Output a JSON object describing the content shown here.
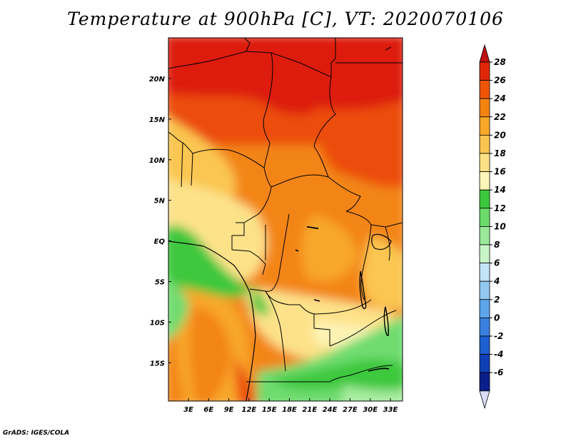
{
  "title": "Temperature at 900hPa [C], VT: 2020070106",
  "credit": "GrADS: IGES/COLA",
  "map": {
    "lat_labels": [
      "20N",
      "15N",
      "10N",
      "5N",
      "EQ",
      "5S",
      "10S",
      "15S"
    ],
    "lon_labels": [
      "3E",
      "6E",
      "9E",
      "12E",
      "15E",
      "18E",
      "21E",
      "24E",
      "27E",
      "30E",
      "33E"
    ]
  },
  "colorbar": {
    "labels": [
      "28",
      "26",
      "24",
      "22",
      "20",
      "18",
      "16",
      "14",
      "12",
      "10",
      "8",
      "6",
      "4",
      "2",
      "0",
      "-2",
      "-4",
      "-6"
    ],
    "top_color": "#c01010",
    "colors": [
      "#e02808",
      "#ee5505",
      "#f48410",
      "#f8a728",
      "#fbc450",
      "#fde285",
      "#fdf6b8",
      "#3cc83c",
      "#6bdc6b",
      "#9ae89a",
      "#c8f5c8",
      "#c3e3f7",
      "#93c8f0",
      "#5da6ea",
      "#3a80de",
      "#1c5fd0",
      "#0f3fb5",
      "#0a1e8c"
    ],
    "bottom_color": "#d8dcf8"
  },
  "colors": {
    "dark_red": "#dd1e0a",
    "red_orange": "#ec4e08",
    "orange": "#f38512",
    "light_orange": "#f8a72a",
    "pale_orange": "#fbc651",
    "yellow": "#fde28a",
    "pale_yellow": "#fdf3b5",
    "green": "#3cc83c",
    "light_green": "#6fdc6f",
    "pale_green": "#a7ec9f"
  }
}
